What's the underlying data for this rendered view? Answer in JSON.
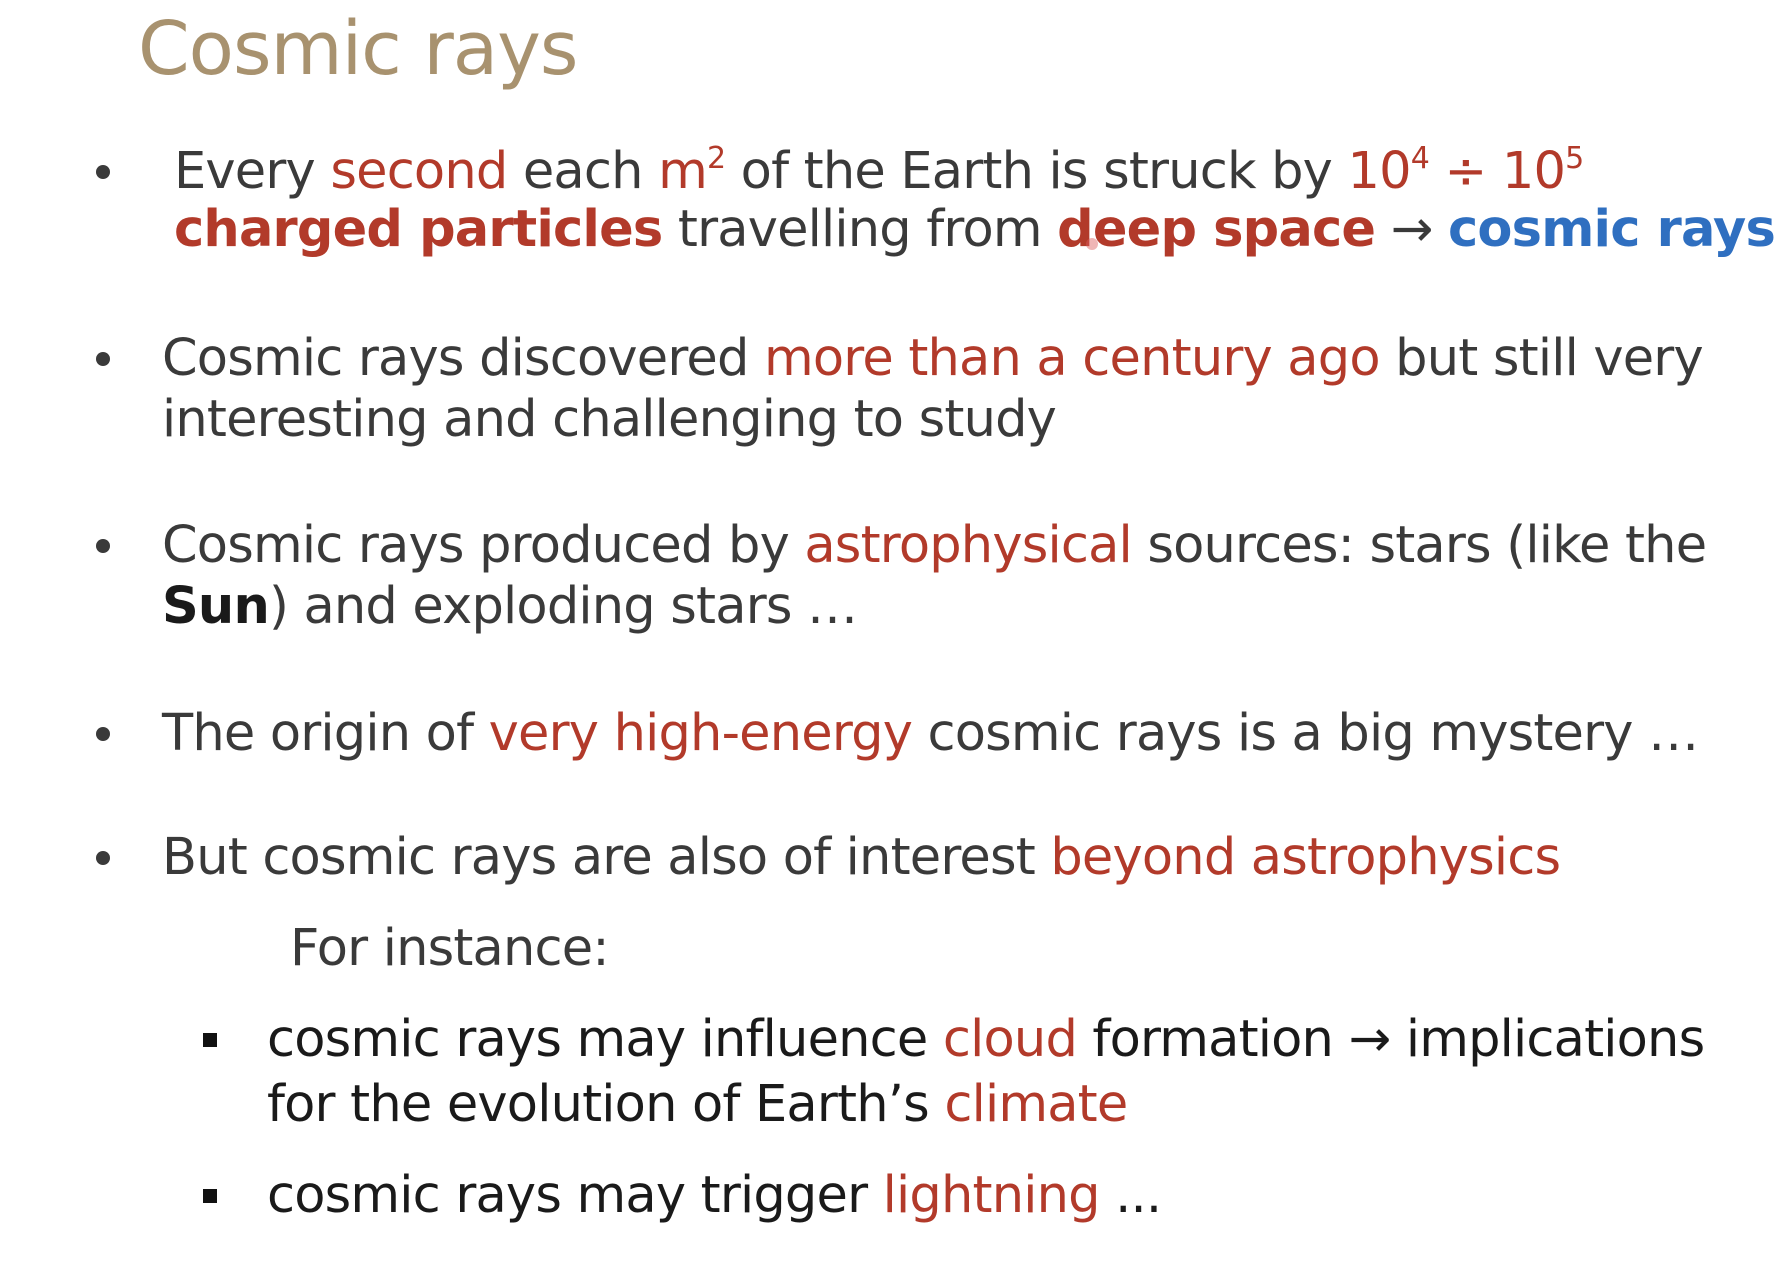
{
  "title": "Cosmic rays",
  "colors": {
    "title": "#a8926f",
    "text": "#3a3a3a",
    "highlight_red": "#b23a2a",
    "highlight_blue": "#2f6fc0"
  },
  "bullets": [
    {
      "line1": {
        "a": "Every ",
        "b": "second",
        "c": " each ",
        "d": "m",
        "d_sup": "2",
        "e": " of the Earth is struck by ",
        "f": "10",
        "f_sup": "4",
        "g": " ÷ ",
        "h": "10",
        "h_sup": "5"
      },
      "line2": {
        "a": "charged particles",
        "b": " travelling from ",
        "c": "deep space",
        "d": " → ",
        "e": "cosmic rays"
      }
    },
    {
      "line1": {
        "a": "Cosmic rays discovered ",
        "b": "more than a century ago",
        "c": " but still very"
      },
      "line2": "interesting and challenging to study"
    },
    {
      "line1": {
        "a": "Cosmic rays produced by ",
        "b": "astrophysical",
        "c": " sources: stars (like the"
      },
      "line2": {
        "a": "Sun",
        "b": ") and exploding stars …"
      }
    },
    {
      "line1": {
        "a": "The origin of ",
        "b": "very high-energy",
        "c": " cosmic rays is a big mystery …"
      }
    },
    {
      "line1": {
        "a": "But cosmic rays are also of interest ",
        "b": "beyond astrophysics"
      }
    }
  ],
  "for_instance": "For instance:",
  "sub_bullets": [
    {
      "line1": {
        "a": "cosmic rays may influence ",
        "b": "cloud",
        "c": " formation → implications"
      },
      "line2": {
        "a": "for the evolution of Earth’s ",
        "b": "climate"
      }
    },
    {
      "line1": {
        "a": "cosmic rays may trigger ",
        "b": "lightning",
        "c": " ..."
      }
    }
  ]
}
